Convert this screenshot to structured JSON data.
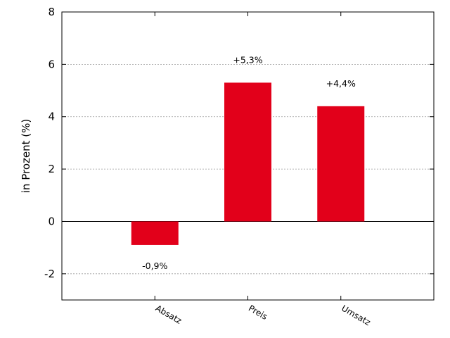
{
  "chart_data": {
    "type": "bar",
    "categories": [
      "Absatz",
      "Preis",
      "Umsatz"
    ],
    "values": [
      -0.9,
      5.3,
      4.4
    ],
    "value_labels": [
      "-0,9%",
      "+5,3%",
      "+4,4%"
    ],
    "title": "",
    "xlabel": "",
    "ylabel": "in Prozent (%)",
    "ylim": [
      -3,
      8
    ],
    "yticks": [
      -2,
      0,
      2,
      4,
      6,
      8
    ],
    "ytick_labels": [
      "-2",
      "0",
      "2",
      "4",
      "6",
      "8"
    ],
    "grid": "horizontal dotted",
    "bar_color": "#e2001a",
    "zero_line": true
  }
}
